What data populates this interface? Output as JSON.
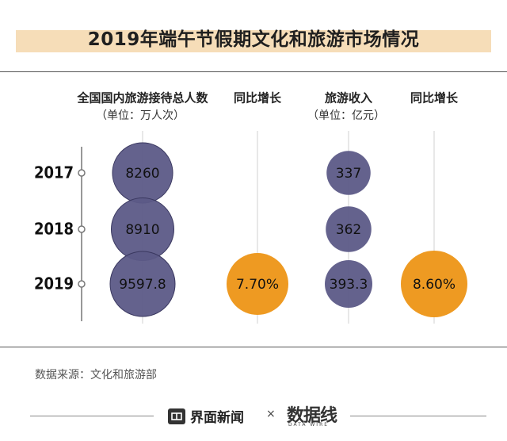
{
  "header": {
    "title": "2019年端午节假期文化和旅游市场情况"
  },
  "chart_data": {
    "type": "bubble-table",
    "title": "2019年端午节假期文化和旅游市场情况",
    "columns": [
      {
        "id": "visitors",
        "label": "全国国内旅游接待总人数",
        "unit_label": "（单位：万人次）"
      },
      {
        "id": "visitors_yoy",
        "label": "同比增长",
        "unit_label": ""
      },
      {
        "id": "revenue",
        "label": "旅游收入",
        "unit_label": "（单位：亿元）"
      },
      {
        "id": "revenue_yoy",
        "label": "同比增长",
        "unit_label": ""
      }
    ],
    "rows": [
      {
        "year": "2017",
        "visitors": 8260,
        "visitors_label": "8260",
        "visitors_yoy": null,
        "visitors_yoy_label": "",
        "revenue": 337,
        "revenue_label": "337",
        "revenue_yoy": null,
        "revenue_yoy_label": ""
      },
      {
        "year": "2018",
        "visitors": 8910,
        "visitors_label": "8910",
        "visitors_yoy": null,
        "visitors_yoy_label": "",
        "revenue": 362,
        "revenue_label": "362",
        "revenue_yoy": null,
        "revenue_yoy_label": ""
      },
      {
        "year": "2019",
        "visitors": 9597.8,
        "visitors_label": "9597.8",
        "visitors_yoy": 7.7,
        "visitors_yoy_label": "7.70%",
        "revenue": 393.3,
        "revenue_label": "393.3",
        "revenue_yoy": 8.6,
        "revenue_yoy_label": "8.60%"
      }
    ]
  },
  "colors": {
    "bubble": "#5c5a87",
    "growth": "#ee9a22",
    "band": "#f6ddb8",
    "text": "#222222"
  },
  "source": "数据来源：文化和旅游部",
  "footer": {
    "brand": "界面新闻",
    "separator": "×",
    "logo": "数据线",
    "logo_sub": "DATA WIRE"
  }
}
